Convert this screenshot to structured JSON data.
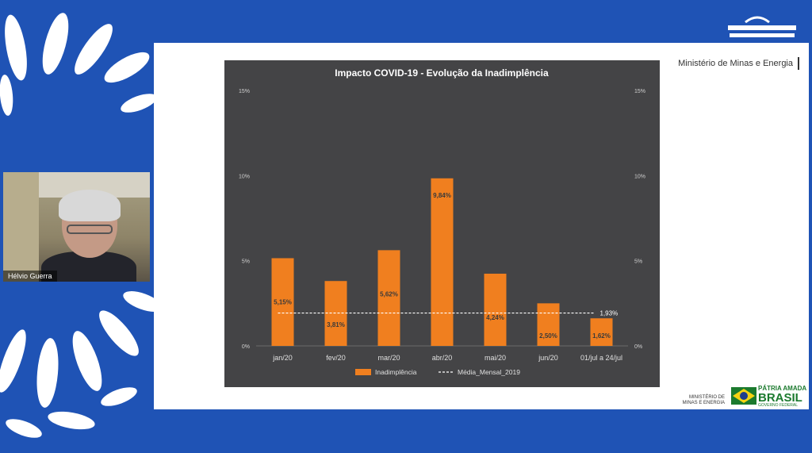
{
  "top_logo": {
    "icon": "waves-logo-icon",
    "text": ""
  },
  "slide": {
    "ministry_header": "Ministério de Minas e Energia",
    "footer": {
      "ministry_small": "MINISTÉRIO DE MINAS E ENERGIA",
      "brasil_line1": "PÁTRIA AMADA",
      "brasil_line2": "BRASIL",
      "brasil_line3": "GOVERNO FEDERAL"
    }
  },
  "video": {
    "participant_name": "Hélvio Guerra"
  },
  "colors": {
    "background": "#1f53b5",
    "bar": "#f07f1f",
    "chart_bg": "#444446",
    "average_line": "#ffffff"
  },
  "chart_data": {
    "type": "bar",
    "title": "Impacto COVID-19 - Evolução da Inadimplência",
    "categories": [
      "jan/20",
      "fev/20",
      "mar/20",
      "abr/20",
      "mai/20",
      "jun/20",
      "01/jul a 24/jul"
    ],
    "series": [
      {
        "name": "Inadimplência",
        "values": [
          5.15,
          3.81,
          5.62,
          9.84,
          4.24,
          2.5,
          1.62
        ],
        "labels": [
          "5,15%",
          "3,81%",
          "5,62%",
          "9,84%",
          "4,24%",
          "2,50%",
          "1,62%"
        ]
      },
      {
        "name": "Média_Mensal_2019",
        "type": "line",
        "style": "dashed",
        "value": 1.93,
        "label": "1,93%"
      }
    ],
    "ylim": [
      0,
      15
    ],
    "yticks": [
      0,
      5,
      10,
      15
    ],
    "ytick_labels": [
      "0%",
      "5%",
      "10%",
      "15%"
    ],
    "secondary_axis": true,
    "grid": false,
    "legend_position": "bottom"
  }
}
